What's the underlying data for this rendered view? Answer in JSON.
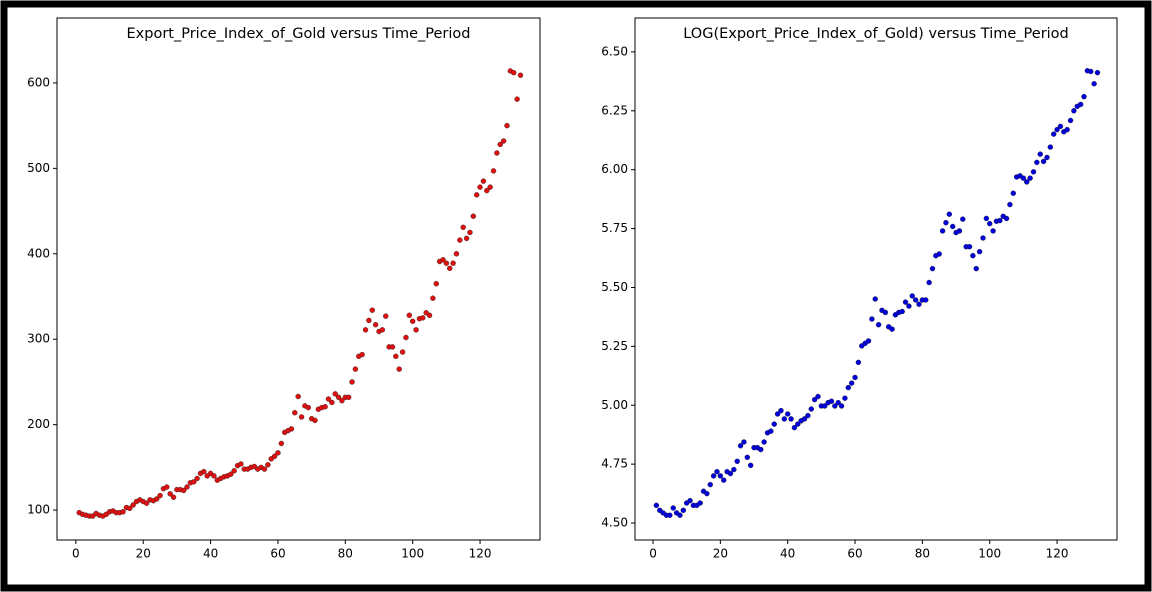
{
  "chart_data": [
    {
      "type": "scatter",
      "title": "Export_Price_Index_of_Gold versus Time_Period",
      "color": "#e01010",
      "x": [
        1,
        2,
        3,
        4,
        5,
        6,
        7,
        8,
        9,
        10,
        11,
        12,
        13,
        14,
        15,
        16,
        17,
        18,
        19,
        20,
        21,
        22,
        23,
        24,
        25,
        26,
        27,
        28,
        29,
        30,
        31,
        32,
        33,
        34,
        35,
        36,
        37,
        38,
        39,
        40,
        41,
        42,
        43,
        44,
        45,
        46,
        47,
        48,
        49,
        50,
        51,
        52,
        53,
        54,
        55,
        56,
        57,
        58,
        59,
        60,
        61,
        62,
        63,
        64,
        65,
        66,
        67,
        68,
        69,
        70,
        71,
        72,
        73,
        74,
        75,
        76,
        77,
        78,
        79,
        80,
        81,
        82,
        83,
        84,
        85,
        86,
        87,
        88,
        89,
        90,
        91,
        92,
        93,
        94,
        95,
        96,
        97,
        98,
        99,
        100,
        101,
        102,
        103,
        104,
        105,
        106,
        107,
        108,
        109,
        110,
        111,
        112,
        113,
        114,
        115,
        116,
        117,
        118,
        119,
        120,
        121,
        122,
        123,
        124,
        125,
        126,
        127,
        128,
        129,
        130,
        131,
        132
      ],
      "values": [
        97,
        95,
        94,
        93,
        93,
        96,
        94,
        93,
        95,
        98,
        99,
        97,
        97,
        98,
        103,
        102,
        106,
        110,
        112,
        110,
        108,
        112,
        111,
        113,
        117,
        125,
        127,
        119,
        115,
        124,
        124,
        123,
        127,
        132,
        133,
        137,
        143,
        145,
        140,
        143,
        140,
        135,
        137,
        139,
        140,
        142,
        146,
        152,
        154,
        148,
        148,
        150,
        151,
        148,
        150,
        148,
        153,
        160,
        163,
        167,
        178,
        191,
        193,
        195,
        214,
        233,
        209,
        222,
        220,
        207,
        205,
        218,
        220,
        221,
        230,
        226,
        236,
        232,
        228,
        232,
        232,
        250,
        265,
        280,
        282,
        311,
        322,
        334,
        317,
        309,
        311,
        327,
        291,
        291,
        280,
        265,
        285,
        302,
        328,
        321,
        311,
        324,
        325,
        331,
        328,
        348,
        365,
        391,
        393,
        389,
        383,
        389,
        400,
        416,
        431,
        418,
        425,
        444,
        469,
        478,
        485,
        474,
        478,
        497,
        518,
        528,
        532,
        550,
        614,
        612,
        581,
        609
      ],
      "xlim": [
        -5.6,
        137.8
      ],
      "ylim": [
        65,
        676
      ],
      "xticks": [
        0,
        20,
        40,
        60,
        80,
        100,
        120
      ],
      "yticks": [
        100,
        200,
        300,
        400,
        500,
        600
      ]
    },
    {
      "type": "scatter",
      "title": "LOG(Export_Price_Index_of_Gold) versus Time_Period",
      "color": "#0000dd",
      "x": [
        1,
        2,
        3,
        4,
        5,
        6,
        7,
        8,
        9,
        10,
        11,
        12,
        13,
        14,
        15,
        16,
        17,
        18,
        19,
        20,
        21,
        22,
        23,
        24,
        25,
        26,
        27,
        28,
        29,
        30,
        31,
        32,
        33,
        34,
        35,
        36,
        37,
        38,
        39,
        40,
        41,
        42,
        43,
        44,
        45,
        46,
        47,
        48,
        49,
        50,
        51,
        52,
        53,
        54,
        55,
        56,
        57,
        58,
        59,
        60,
        61,
        62,
        63,
        64,
        65,
        66,
        67,
        68,
        69,
        70,
        71,
        72,
        73,
        74,
        75,
        76,
        77,
        78,
        79,
        80,
        81,
        82,
        83,
        84,
        85,
        86,
        87,
        88,
        89,
        90,
        91,
        92,
        93,
        94,
        95,
        96,
        97,
        98,
        99,
        100,
        101,
        102,
        103,
        104,
        105,
        106,
        107,
        108,
        109,
        110,
        111,
        112,
        113,
        114,
        115,
        116,
        117,
        118,
        119,
        120,
        121,
        122,
        123,
        124,
        125,
        126,
        127,
        128,
        129,
        130,
        131,
        132
      ],
      "values": [
        4.575,
        4.554,
        4.543,
        4.533,
        4.533,
        4.564,
        4.543,
        4.533,
        4.554,
        4.585,
        4.595,
        4.575,
        4.575,
        4.585,
        4.635,
        4.625,
        4.663,
        4.7,
        4.718,
        4.7,
        4.682,
        4.718,
        4.71,
        4.727,
        4.762,
        4.828,
        4.844,
        4.779,
        4.745,
        4.82,
        4.82,
        4.812,
        4.844,
        4.883,
        4.89,
        4.92,
        4.963,
        4.977,
        4.942,
        4.963,
        4.942,
        4.905,
        4.92,
        4.934,
        4.942,
        4.956,
        4.984,
        5.024,
        5.037,
        4.997,
        4.997,
        5.011,
        5.017,
        4.997,
        5.011,
        4.997,
        5.03,
        5.075,
        5.094,
        5.118,
        5.182,
        5.252,
        5.263,
        5.273,
        5.366,
        5.451,
        5.342,
        5.403,
        5.394,
        5.333,
        5.323,
        5.384,
        5.394,
        5.398,
        5.438,
        5.421,
        5.464,
        5.447,
        5.429,
        5.447,
        5.447,
        5.521,
        5.58,
        5.635,
        5.642,
        5.74,
        5.775,
        5.811,
        5.759,
        5.733,
        5.74,
        5.79,
        5.673,
        5.673,
        5.635,
        5.58,
        5.652,
        5.71,
        5.793,
        5.771,
        5.74,
        5.781,
        5.784,
        5.802,
        5.793,
        5.852,
        5.9,
        5.969,
        5.974,
        5.964,
        5.948,
        5.964,
        5.991,
        6.031,
        6.066,
        6.035,
        6.052,
        6.096,
        6.151,
        6.17,
        6.184,
        6.161,
        6.17,
        6.209,
        6.25,
        6.269,
        6.277,
        6.31,
        6.42,
        6.417,
        6.365,
        6.412
      ],
      "xlim": [
        -5.35,
        137.8
      ],
      "ylim": [
        4.428,
        6.644
      ],
      "xticks": [
        0,
        20,
        40,
        60,
        80,
        100,
        120
      ],
      "yticks": [
        {
          "value": 4.5,
          "label": "4.50"
        },
        4.75,
        {
          "value": 5,
          "label": "5.00"
        },
        5.25,
        {
          "value": 5.5,
          "label": "5.50"
        },
        5.75,
        {
          "value": 6,
          "label": "6.00"
        },
        6.25,
        {
          "value": 6.5,
          "label": "6.50"
        }
      ]
    }
  ]
}
